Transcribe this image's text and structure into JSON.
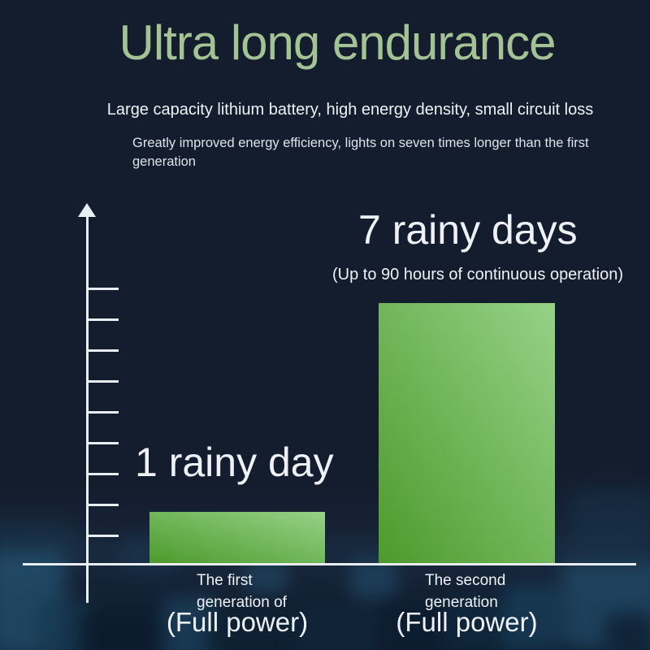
{
  "page": {
    "title": "Ultra long endurance",
    "subtitle": "Large capacity lithium battery, high energy density, small circuit loss",
    "description_lines": [
      "Greatly improved energy efficiency, lights on seven times longer than the first",
      "generation"
    ]
  },
  "chart_data": {
    "type": "bar",
    "title": "",
    "categories": [
      "The first generation of (Full power)",
      "The second generation (Full power)"
    ],
    "values": [
      1,
      7
    ],
    "value_unit": "rainy days",
    "ylim": [
      0,
      9
    ],
    "y_tick_count": 9,
    "grid": false,
    "legend": false,
    "bars": [
      {
        "value": 1,
        "value_label": "1 rainy day",
        "category_lines": [
          "The first",
          "generation of"
        ],
        "category_emphasis": "(Full power)"
      },
      {
        "value": 7,
        "value_label": "7 rainy days",
        "value_note": "(Up to 90 hours of continuous operation)",
        "category_lines": [
          "The second",
          "generation"
        ],
        "category_emphasis": "(Full power)"
      }
    ]
  },
  "colors": {
    "background": "#141d2e",
    "title_green": "#a3c394",
    "text_white": "#eef2f6",
    "axis_white": "#e9eef2",
    "bar_gradient_dark": "#4d9a2d",
    "bar_gradient_light": "#96d287"
  }
}
